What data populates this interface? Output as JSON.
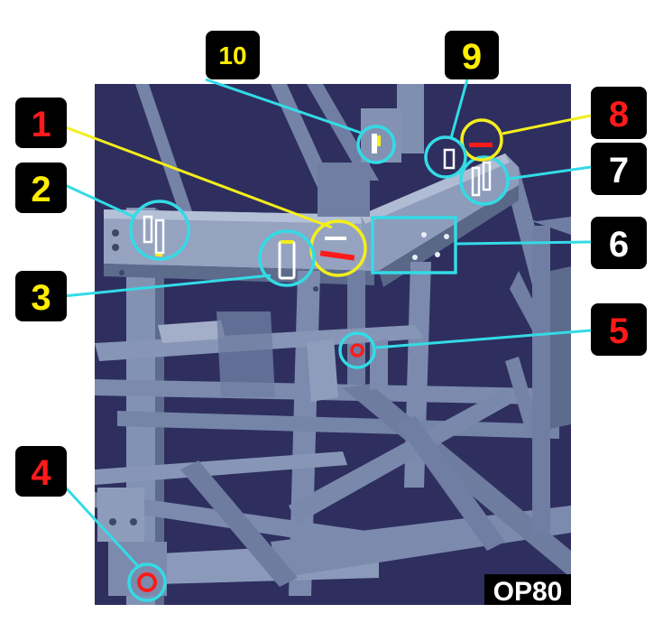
{
  "operation_label": "OP80",
  "colors": {
    "background": "#2e2f5f",
    "frame": "#7f8fb0",
    "frame_light": "#a9b6cc",
    "frame_dark": "#4f5d7d",
    "cyan": "#33dbe6",
    "yellow": "#f4ee1c",
    "red_mark": "#ff1a1a",
    "badge_bg": "#000000",
    "number_red": "#ff1a1a",
    "number_yellow": "#ffee00",
    "number_white": "#ffffff"
  },
  "callouts": [
    {
      "number": "1",
      "number_color": "red",
      "ring_color": "yellow",
      "mark": "red-bar"
    },
    {
      "number": "2",
      "number_color": "yellow",
      "ring_color": "cyan",
      "mark": "white-slots"
    },
    {
      "number": "3",
      "number_color": "yellow",
      "ring_color": "cyan",
      "mark": "white-slot"
    },
    {
      "number": "4",
      "number_color": "red",
      "ring_color": "cyan",
      "mark": "red-ring"
    },
    {
      "number": "5",
      "number_color": "red",
      "ring_color": "cyan",
      "mark": "red-ring"
    },
    {
      "number": "6",
      "number_color": "white",
      "ring_color": "cyan",
      "mark": "rectangle-region"
    },
    {
      "number": "7",
      "number_color": "white",
      "ring_color": "cyan",
      "mark": "white-slots"
    },
    {
      "number": "8",
      "number_color": "red",
      "ring_color": "yellow",
      "mark": "red-bar"
    },
    {
      "number": "9",
      "number_color": "yellow",
      "ring_color": "cyan",
      "mark": "white-slot"
    },
    {
      "number": "10",
      "number_color": "yellow",
      "ring_color": "cyan",
      "mark": "white-slot"
    }
  ]
}
